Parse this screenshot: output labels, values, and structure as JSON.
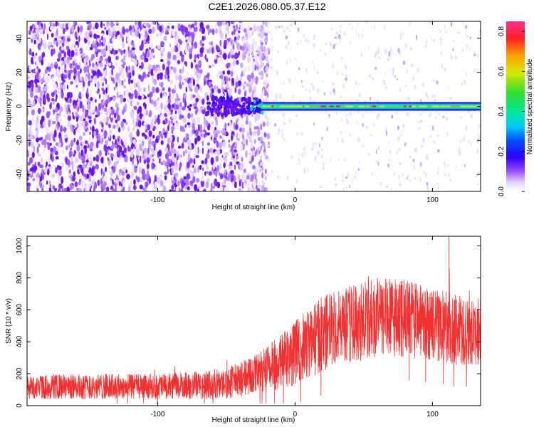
{
  "title": "C2E1.2026.080.05.37.E12",
  "chart_data": [
    {
      "type": "heatmap",
      "name": "spectrogram",
      "xlabel": "Height of straight line (km)",
      "ylabel": "Frequency (Hz)",
      "xlim": [
        -195,
        135
      ],
      "ylim": [
        -50,
        50
      ],
      "xticks": [
        -100,
        0,
        100
      ],
      "yticks": [
        -40,
        -20,
        0,
        20,
        40
      ],
      "xtick_labels": [
        "-100",
        "0",
        "100"
      ],
      "ytick_labels": [
        "-40",
        "-20",
        "0",
        "20",
        "40"
      ],
      "colorbar": {
        "label": "Normalized spectral amplitude",
        "range": [
          0.0,
          0.85
        ],
        "ticks": [
          0.0,
          0.2,
          0.4,
          0.6,
          0.8
        ],
        "tick_labels": [
          "0.0",
          "0.2",
          "0.4",
          "0.6",
          "0.8"
        ]
      },
      "features": {
        "noise_region_x": [
          -195,
          -25
        ],
        "carrier_start_x": -28,
        "carrier_frequency_hz": 0,
        "carrier_halfwidth_hz": 2.5,
        "carrier_peak_x": [
          10,
          35
        ]
      }
    },
    {
      "type": "line",
      "name": "snr",
      "xlabel": "Height of straight line (km)",
      "ylabel": "SNR (10 * v/v)",
      "xlim": [
        -195,
        135
      ],
      "ylim": [
        0,
        1060
      ],
      "xticks": [
        -100,
        0,
        100
      ],
      "yticks": [
        0,
        200,
        400,
        600,
        800,
        1000
      ],
      "xtick_labels": [
        "-100",
        "0",
        "100"
      ],
      "ytick_labels": [
        "0",
        "200",
        "400",
        "600",
        "800",
        "1000"
      ],
      "color": "#f03232",
      "envelope": {
        "x": [
          -195,
          -150,
          -100,
          -60,
          -40,
          -20,
          0,
          20,
          40,
          60,
          80,
          100,
          120,
          135
        ],
        "mean": [
          115,
          120,
          120,
          130,
          160,
          230,
          330,
          450,
          520,
          550,
          545,
          510,
          470,
          460
        ],
        "spread": [
          75,
          80,
          80,
          90,
          110,
          150,
          200,
          240,
          250,
          250,
          240,
          230,
          220,
          210
        ]
      },
      "peak": {
        "x": 112,
        "y": 1060
      }
    }
  ]
}
